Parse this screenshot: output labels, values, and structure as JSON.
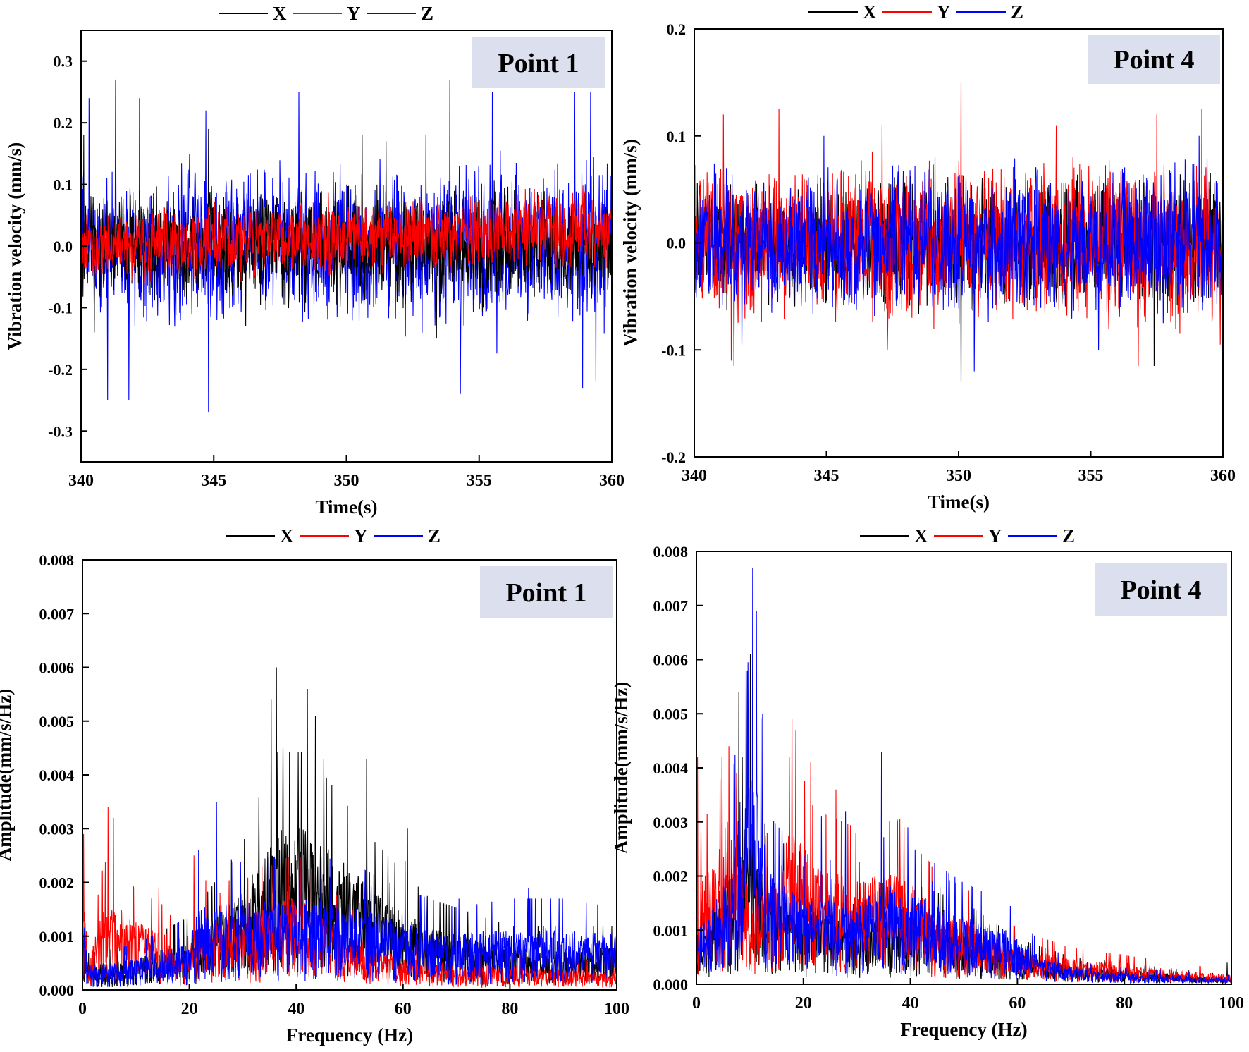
{
  "colors": {
    "X": "#000000",
    "Y": "#ff0000",
    "Z": "#0000ff",
    "label_box": "#dbdfee"
  },
  "chart_data": [
    {
      "type": "line",
      "title": "Point 1",
      "xlabel": "Time(s)",
      "ylabel": "Vibration velocity (mm/s)",
      "xlim": [
        340,
        360
      ],
      "ylim": [
        -0.35,
        0.35
      ],
      "xticks": [
        340,
        345,
        350,
        355,
        360
      ],
      "xtick_labels": [
        "340",
        "345",
        "350",
        "355",
        "360"
      ],
      "yticks": [
        -0.3,
        -0.2,
        -0.1,
        0.0,
        0.1,
        0.2,
        0.3
      ],
      "ytick_labels": [
        "-0.3",
        "-0.2",
        "-0.1",
        "0.0",
        "0.1",
        "0.2",
        "0.3"
      ],
      "legend": [
        "X",
        "Y",
        "Z"
      ],
      "legend_position": "top-center",
      "series": [
        {
          "name": "Z",
          "kind": "time",
          "env": [
            [
              340,
              0.09
            ],
            [
              345,
              0.1
            ],
            [
              350,
              0.1
            ],
            [
              355,
              0.11
            ],
            [
              360,
              0.11
            ]
          ],
          "offset": [
            [
              340,
              0
            ],
            [
              360,
              0
            ]
          ],
          "peaks": [
            [
              340.3,
              0.24
            ],
            [
              341.3,
              0.27
            ],
            [
              342.2,
              0.24
            ],
            [
              344.7,
              0.22
            ],
            [
              344.8,
              -0.27
            ],
            [
              348.2,
              0.25
            ],
            [
              353.9,
              0.27
            ],
            [
              354.3,
              -0.24
            ],
            [
              355.5,
              0.25
            ],
            [
              358.6,
              0.25
            ],
            [
              359.2,
              0.25
            ],
            [
              341.0,
              -0.25
            ],
            [
              341.8,
              -0.25
            ],
            [
              358.9,
              -0.23
            ],
            [
              359.4,
              -0.22
            ]
          ]
        },
        {
          "name": "X",
          "kind": "time",
          "env": [
            [
              340,
              0.06
            ],
            [
              345,
              0.075
            ],
            [
              350,
              0.075
            ],
            [
              355,
              0.08
            ],
            [
              360,
              0.06
            ]
          ],
          "offset": [
            [
              340,
              0
            ],
            [
              360,
              0
            ]
          ],
          "peaks": [
            [
              340.1,
              0.18
            ],
            [
              344.8,
              0.19
            ],
            [
              350.6,
              0.18
            ],
            [
              351.5,
              0.17
            ],
            [
              353.0,
              0.18
            ],
            [
              349.5,
              0.12
            ],
            [
              340.5,
              -0.14
            ],
            [
              353.4,
              -0.15
            ],
            [
              346.2,
              -0.13
            ]
          ]
        },
        {
          "name": "Y",
          "kind": "time",
          "env": [
            [
              340,
              0.045
            ],
            [
              350,
              0.05
            ],
            [
              360,
              0.055
            ]
          ],
          "offset": [
            [
              340,
              0.0
            ],
            [
              350,
              0.015
            ],
            [
              360,
              0.03
            ]
          ],
          "peaks": []
        }
      ]
    },
    {
      "type": "line",
      "title": "Point 4",
      "xlabel": "Time(s)",
      "ylabel": "Vibration velocity (mm/s)",
      "xlim": [
        340,
        360
      ],
      "ylim": [
        -0.2,
        0.2
      ],
      "xticks": [
        340,
        345,
        350,
        355,
        360
      ],
      "xtick_labels": [
        "340",
        "345",
        "350",
        "355",
        "360"
      ],
      "yticks": [
        -0.2,
        -0.1,
        0.0,
        0.1,
        0.2
      ],
      "ytick_labels": [
        "-0.2",
        "-0.1",
        "0.0",
        "0.1",
        "0.2"
      ],
      "legend": [
        "X",
        "Y",
        "Z"
      ],
      "legend_position": "top-center",
      "series": [
        {
          "name": "X",
          "kind": "time",
          "env": [
            [
              340,
              0.045
            ],
            [
              360,
              0.05
            ]
          ],
          "offset": [
            [
              340,
              0
            ],
            [
              360,
              0
            ]
          ],
          "peaks": [
            [
              341.5,
              -0.115
            ],
            [
              350.1,
              -0.13
            ],
            [
              357.4,
              -0.115
            ],
            [
              349.1,
              0.08
            ]
          ]
        },
        {
          "name": "Y",
          "kind": "time",
          "env": [
            [
              340,
              0.055
            ],
            [
              360,
              0.06
            ]
          ],
          "offset": [
            [
              340,
              0
            ],
            [
              360,
              0
            ]
          ],
          "peaks": [
            [
              341.1,
              0.12
            ],
            [
              343.2,
              0.125
            ],
            [
              347.1,
              0.11
            ],
            [
              350.1,
              0.15
            ],
            [
              353.7,
              0.11
            ],
            [
              357.5,
              0.12
            ],
            [
              359.2,
              0.125
            ],
            [
              341.4,
              -0.11
            ],
            [
              347.3,
              -0.1
            ],
            [
              356.8,
              -0.115
            ],
            [
              359.9,
              -0.095
            ]
          ]
        },
        {
          "name": "Z",
          "kind": "time",
          "env": [
            [
              340,
              0.05
            ],
            [
              360,
              0.055
            ]
          ],
          "offset": [
            [
              340,
              0
            ],
            [
              360,
              0
            ]
          ],
          "peaks": [
            [
              350.6,
              -0.12
            ],
            [
              341.8,
              -0.095
            ],
            [
              344.9,
              0.1
            ],
            [
              359.1,
              0.1
            ],
            [
              355.3,
              -0.1
            ]
          ]
        }
      ]
    },
    {
      "type": "line",
      "title": "Point 1",
      "xlabel": "Frequency (Hz)",
      "ylabel": "Amplitude(mm/s/Hz)",
      "xlim": [
        0,
        100
      ],
      "ylim": [
        0,
        0.008
      ],
      "xticks": [
        0,
        20,
        40,
        60,
        80,
        100
      ],
      "xtick_labels": [
        "0",
        "20",
        "40",
        "60",
        "80",
        "100"
      ],
      "yticks": [
        0,
        0.001,
        0.002,
        0.003,
        0.004,
        0.005,
        0.006,
        0.007,
        0.008
      ],
      "ytick_labels": [
        "0.000",
        "0.001",
        "0.002",
        "0.003",
        "0.004",
        "0.005",
        "0.006",
        "0.007",
        "0.008"
      ],
      "legend": [
        "X",
        "Y",
        "Z"
      ],
      "legend_position": "top-center",
      "series": [
        {
          "name": "X",
          "kind": "spectrum",
          "env": [
            [
              0,
              0.0016
            ],
            [
              1,
              0.0004
            ],
            [
              10,
              0.0005
            ],
            [
              20,
              0.0008
            ],
            [
              30,
              0.0016
            ],
            [
              36,
              0.0026
            ],
            [
              42,
              0.0026
            ],
            [
              55,
              0.0016
            ],
            [
              65,
              0.001
            ],
            [
              80,
              0.0007
            ],
            [
              100,
              0.0007
            ]
          ],
          "peaks": [
            [
              35.3,
              0.0054
            ],
            [
              36.3,
              0.006
            ],
            [
              37.5,
              0.0045
            ],
            [
              42.1,
              0.0056
            ],
            [
              43.6,
              0.0051
            ],
            [
              45.2,
              0.0043
            ],
            [
              53.2,
              0.0043
            ],
            [
              60.8,
              0.003
            ]
          ]
        },
        {
          "name": "Y",
          "kind": "spectrum",
          "env": [
            [
              0,
              0.003
            ],
            [
              1,
              0.0004
            ],
            [
              4,
              0.0014
            ],
            [
              6,
              0.0014
            ],
            [
              10,
              0.0011
            ],
            [
              16,
              0.0009
            ],
            [
              19,
              0.0004
            ],
            [
              22,
              0.0012
            ],
            [
              30,
              0.0012
            ],
            [
              40,
              0.0015
            ],
            [
              50,
              0.0009
            ],
            [
              60,
              0.0005
            ],
            [
              100,
              0.0003
            ]
          ],
          "peaks": [
            [
              0.2,
              0.0029
            ],
            [
              4.8,
              0.0034
            ],
            [
              5.8,
              0.0032
            ],
            [
              20.9,
              0.0025
            ],
            [
              9.6,
              0.0019
            ],
            [
              14.3,
              0.0019
            ],
            [
              25.7,
              0.0018
            ],
            [
              33.6,
              0.0023
            ]
          ]
        },
        {
          "name": "Z",
          "kind": "spectrum",
          "env": [
            [
              0,
              0.0015
            ],
            [
              1,
              0.0004
            ],
            [
              10,
              0.0005
            ],
            [
              20,
              0.0008
            ],
            [
              22,
              0.0014
            ],
            [
              30,
              0.0014
            ],
            [
              40,
              0.0015
            ],
            [
              50,
              0.0014
            ],
            [
              60,
              0.0011
            ],
            [
              70,
              0.0009
            ],
            [
              80,
              0.001
            ],
            [
              90,
              0.001
            ],
            [
              100,
              0.0009
            ]
          ],
          "peaks": [
            [
              25.1,
              0.0035
            ],
            [
              21.7,
              0.0026
            ],
            [
              40.6,
              0.003
            ],
            [
              60.4,
              0.0024
            ],
            [
              83.5,
              0.0019
            ],
            [
              70.5,
              0.0017
            ]
          ]
        }
      ]
    },
    {
      "type": "line",
      "title": "Point 4",
      "xlabel": "Frequency (Hz)",
      "ylabel": "Amplitude(mm/s/Hz)",
      "xlim": [
        0,
        100
      ],
      "ylim": [
        0,
        0.008
      ],
      "xticks": [
        0,
        20,
        40,
        60,
        80,
        100
      ],
      "xtick_labels": [
        "0",
        "20",
        "40",
        "60",
        "80",
        "100"
      ],
      "yticks": [
        0,
        0.001,
        0.002,
        0.003,
        0.004,
        0.005,
        0.006,
        0.007,
        0.008
      ],
      "ytick_labels": [
        "0.000",
        "0.001",
        "0.002",
        "0.003",
        "0.004",
        "0.005",
        "0.006",
        "0.007",
        "0.008"
      ],
      "legend": [
        "X",
        "Y",
        "Z"
      ],
      "legend_position": "top-center",
      "series": [
        {
          "name": "X",
          "kind": "spectrum",
          "env": [
            [
              0,
              0.0008
            ],
            [
              5,
              0.0014
            ],
            [
              9,
              0.0026
            ],
            [
              12,
              0.0018
            ],
            [
              20,
              0.0013
            ],
            [
              30,
              0.0011
            ],
            [
              40,
              0.0011
            ],
            [
              50,
              0.0009
            ],
            [
              60,
              0.0005
            ],
            [
              70,
              0.0003
            ],
            [
              100,
              0.0001
            ]
          ],
          "peaks": [
            [
              7.9,
              0.0054
            ],
            [
              9.3,
              0.0058
            ],
            [
              10.1,
              0.0061
            ],
            [
              45.5,
              0.0018
            ],
            [
              99.2,
              0.0004
            ]
          ]
        },
        {
          "name": "Y",
          "kind": "spectrum",
          "env": [
            [
              0,
              0.0015
            ],
            [
              4,
              0.0022
            ],
            [
              7,
              0.0024
            ],
            [
              12,
              0.0014
            ],
            [
              18,
              0.0026
            ],
            [
              22,
              0.0019
            ],
            [
              30,
              0.0017
            ],
            [
              38,
              0.0018
            ],
            [
              45,
              0.0012
            ],
            [
              55,
              0.0009
            ],
            [
              60,
              0.0006
            ],
            [
              70,
              0.0004
            ],
            [
              100,
              0.00015
            ]
          ],
          "peaks": [
            [
              0.2,
              0.0042
            ],
            [
              4.8,
              0.0042
            ],
            [
              6.1,
              0.0044
            ],
            [
              17.9,
              0.0049
            ],
            [
              18.6,
              0.0047
            ],
            [
              21.4,
              0.0041
            ],
            [
              26.1,
              0.0036
            ],
            [
              29.8,
              0.0028
            ],
            [
              37.6,
              0.003
            ],
            [
              38.8,
              0.0029
            ],
            [
              9.2,
              0.0035
            ]
          ]
        },
        {
          "name": "Z",
          "kind": "spectrum",
          "env": [
            [
              0,
              0.0008
            ],
            [
              6,
              0.0018
            ],
            [
              9,
              0.0035
            ],
            [
              11,
              0.0035
            ],
            [
              14,
              0.0018
            ],
            [
              20,
              0.0014
            ],
            [
              30,
              0.0013
            ],
            [
              35,
              0.0016
            ],
            [
              40,
              0.0015
            ],
            [
              50,
              0.0011
            ],
            [
              58,
              0.0009
            ],
            [
              65,
              0.0004
            ],
            [
              75,
              0.0002
            ],
            [
              100,
              0.0001
            ]
          ],
          "peaks": [
            [
              10.5,
              0.0077
            ],
            [
              11.2,
              0.0069
            ],
            [
              9.5,
              0.0058
            ],
            [
              12.4,
              0.005
            ],
            [
              34.6,
              0.0043
            ],
            [
              23.4,
              0.0031
            ],
            [
              27.9,
              0.0032
            ],
            [
              39.5,
              0.0029
            ],
            [
              44.1,
              0.0019
            ]
          ]
        }
      ]
    }
  ]
}
